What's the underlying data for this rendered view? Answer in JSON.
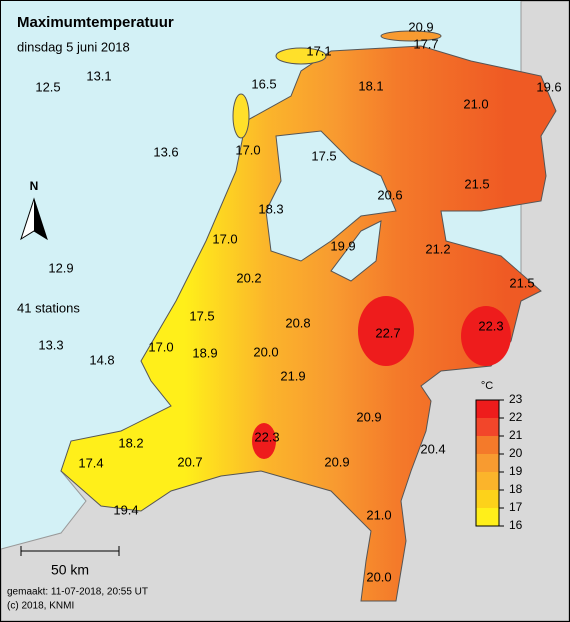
{
  "header": {
    "title": "Maximumtemperatuur",
    "subtitle": "dinsdag 5 juni 2018"
  },
  "stations": [
    "20.9",
    "17.7",
    "17.1",
    "16.5",
    "18.1",
    "19.6",
    "21.0",
    "12.5",
    "13.1",
    "13.6",
    "17.0",
    "17.5",
    "20.6",
    "21.5",
    "18.3",
    "17.0",
    "19.9",
    "21.2",
    "21.5",
    "12.9",
    "20.2",
    "17.5",
    "20.8",
    "22.7",
    "22.3",
    "13.3",
    "14.8",
    "17.0",
    "18.9",
    "20.0",
    "21.9",
    "20.9",
    "18.2",
    "22.3",
    "20.4",
    "17.4",
    "20.7",
    "20.9",
    "19.4",
    "21.0",
    "20.0"
  ],
  "station_count": "41 stations",
  "north": "N",
  "legend": {
    "unit": "°C",
    "ticks": [
      "23",
      "22",
      "21",
      "20",
      "19",
      "18",
      "17",
      "16"
    ]
  },
  "scale": {
    "label": "50 km"
  },
  "footer": [
    "gemaakt: 11-07-2018, 20:55 UT",
    "(c) 2018, KNMI"
  ]
}
